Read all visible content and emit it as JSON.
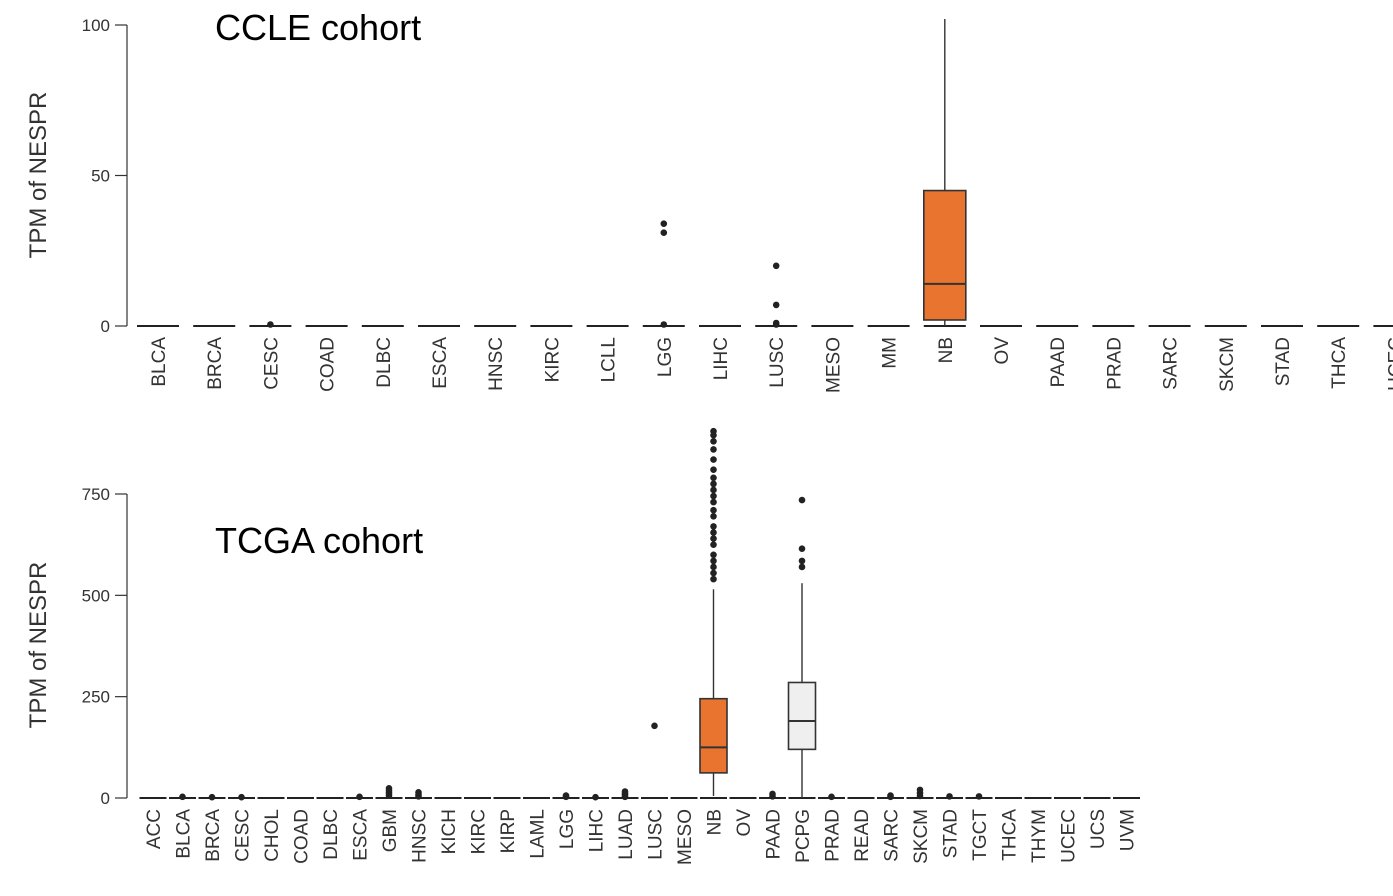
{
  "chart_data": [
    {
      "type": "box",
      "title": "CCLE cohort",
      "ylabel": "TPM of NESPR",
      "xlabel": "",
      "ylim": [
        0,
        100
      ],
      "yticks": [
        0,
        50,
        100
      ],
      "grid": false,
      "highlight_color": "#e8742f",
      "categories": [
        "BLCA",
        "BRCA",
        "CESC",
        "COAD",
        "DLBC",
        "ESCA",
        "HNSC",
        "KIRC",
        "LCLL",
        "LGG",
        "LIHC",
        "LUSC",
        "MESO",
        "MM",
        "NB",
        "OV",
        "PAAD",
        "PRAD",
        "SARC",
        "SKCM",
        "STAD",
        "THCA",
        "UCEC"
      ],
      "boxes": [
        {
          "category": "NB",
          "min": 0,
          "q1": 2,
          "median": 14,
          "q3": 45,
          "max": 102,
          "fill": "#e8742f"
        }
      ],
      "outliers": [
        {
          "category": "CESC",
          "values": [
            0.5
          ]
        },
        {
          "category": "LGG",
          "values": [
            34,
            31,
            0.5
          ]
        },
        {
          "category": "LUSC",
          "values": [
            20,
            7,
            1,
            0.5
          ]
        }
      ]
    },
    {
      "type": "box",
      "title": "TCGA cohort",
      "ylabel": "TPM of NESPR",
      "xlabel": "",
      "ylim": [
        0,
        900
      ],
      "yticks": [
        0,
        250,
        500,
        750
      ],
      "grid": false,
      "highlight_color": "#e8742f",
      "categories": [
        "ACC",
        "BLCA",
        "BRCA",
        "CESC",
        "CHOL",
        "COAD",
        "DLBC",
        "ESCA",
        "GBM",
        "HNSC",
        "KICH",
        "KIRC",
        "KIRP",
        "LAML",
        "LGG",
        "LIHC",
        "LUAD",
        "LUSC",
        "MESO",
        "NB",
        "OV",
        "PAAD",
        "PCPG",
        "PRAD",
        "READ",
        "SARC",
        "SKCM",
        "STAD",
        "TGCT",
        "THCA",
        "THYM",
        "UCEC",
        "UCS",
        "UVM"
      ],
      "boxes": [
        {
          "category": "NB",
          "min": 5,
          "q1": 62,
          "median": 125,
          "q3": 245,
          "max": 515,
          "fill": "#e8742f"
        },
        {
          "category": "PCPG",
          "min": 0,
          "q1": 120,
          "median": 190,
          "q3": 285,
          "max": 530,
          "fill": "#efefef"
        }
      ],
      "outliers": [
        {
          "category": "BLCA",
          "values": [
            3
          ]
        },
        {
          "category": "BRCA",
          "values": [
            2
          ]
        },
        {
          "category": "CESC",
          "values": [
            2
          ]
        },
        {
          "category": "ESCA",
          "values": [
            3
          ]
        },
        {
          "category": "GBM",
          "values": [
            24,
            18,
            12,
            6
          ]
        },
        {
          "category": "HNSC",
          "values": [
            14,
            8,
            4
          ]
        },
        {
          "category": "LGG",
          "values": [
            6,
            3
          ]
        },
        {
          "category": "LIHC",
          "values": [
            2
          ]
        },
        {
          "category": "LUAD",
          "values": [
            16,
            11,
            7,
            3
          ]
        },
        {
          "category": "LUSC",
          "values": [
            178
          ]
        },
        {
          "category": "NB",
          "values": [
            905,
            895,
            880,
            860,
            835,
            810,
            790,
            775,
            760,
            745,
            730,
            710,
            695,
            670,
            655,
            640,
            625,
            600,
            585,
            570,
            555,
            540
          ]
        },
        {
          "category": "PAAD",
          "values": [
            10,
            4
          ]
        },
        {
          "category": "PCPG",
          "values": [
            735,
            615,
            585,
            570
          ]
        },
        {
          "category": "PRAD",
          "values": [
            3
          ]
        },
        {
          "category": "SARC",
          "values": [
            6,
            3
          ]
        },
        {
          "category": "SKCM",
          "values": [
            20,
            12,
            5
          ]
        },
        {
          "category": "STAD",
          "values": [
            4
          ]
        },
        {
          "category": "TGCT",
          "values": [
            4
          ]
        }
      ]
    }
  ]
}
